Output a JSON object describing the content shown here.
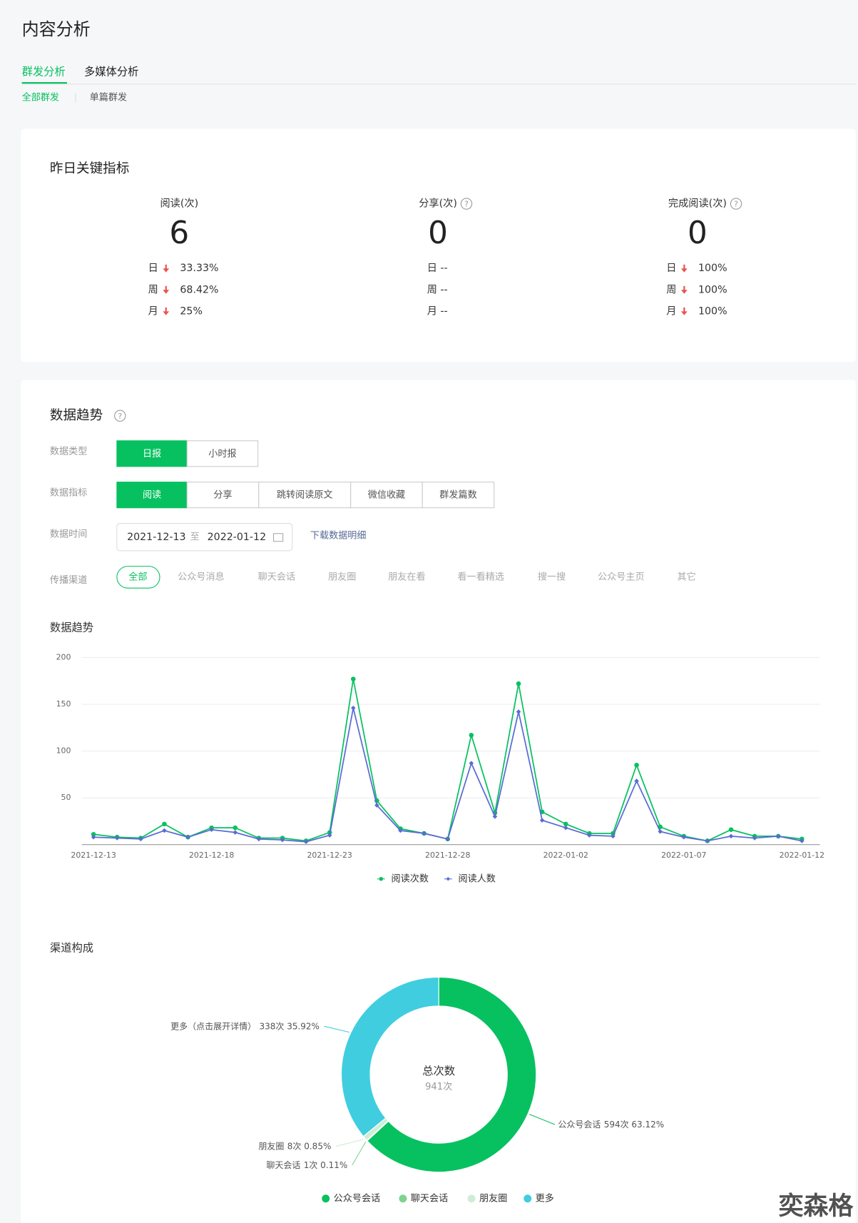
{
  "header": {
    "title": "内容分析"
  },
  "tabs": [
    "群发分析",
    "多媒体分析"
  ],
  "subtabs": [
    "全部群发",
    "单篇群发"
  ],
  "key_metrics": {
    "title": "昨日关键指标",
    "items": [
      {
        "label": "阅读(次)",
        "value": 6,
        "rows": [
          {
            "period": "日",
            "change": "33.33%",
            "trend": "down"
          },
          {
            "period": "周",
            "change": "68.42%",
            "trend": "down"
          },
          {
            "period": "月",
            "change": "25%",
            "trend": "down"
          }
        ]
      },
      {
        "label": "分享(次)",
        "value": 0,
        "help": true,
        "rows": [
          {
            "period": "日",
            "change": "--"
          },
          {
            "period": "周",
            "change": "--"
          },
          {
            "period": "月",
            "change": "--"
          }
        ]
      },
      {
        "label": "完成阅读(次)",
        "value": 0,
        "help": true,
        "rows": [
          {
            "period": "日",
            "change": "100%",
            "trend": "down"
          },
          {
            "period": "周",
            "change": "100%",
            "trend": "down"
          },
          {
            "period": "月",
            "change": "100%",
            "trend": "down"
          }
        ]
      }
    ]
  },
  "trend": {
    "title": "数据趋势",
    "filters": [
      {
        "label": "数据类型",
        "options": [
          "日报",
          "小时报"
        ]
      },
      {
        "label": "数据指标",
        "options": [
          "阅读",
          "分享",
          "跳转阅读原文",
          "微信收藏",
          "群发篇数"
        ]
      }
    ],
    "time": {
      "label": "数据时间",
      "start": "2021-12-13",
      "separator": "至",
      "end": "2022-01-12",
      "download": "下载数据明细"
    },
    "channels": {
      "label": "传播渠道",
      "options": [
        "全部",
        "公众号消息",
        "聊天会话",
        "朋友圈",
        "朋友在看",
        "看一看精选",
        "搜一搜",
        "公众号主页",
        "其它"
      ]
    }
  },
  "chart_data": [
    {
      "type": "line",
      "title": "数据趋势",
      "categories": [
        "2021-12-13",
        null,
        null,
        null,
        null,
        "2021-12-18",
        null,
        null,
        null,
        null,
        "2021-12-23",
        null,
        null,
        null,
        null,
        "2021-12-28",
        null,
        null,
        null,
        null,
        "2022-01-02",
        null,
        null,
        null,
        null,
        "2022-01-07",
        null,
        null,
        null,
        null,
        "2022-01-12"
      ],
      "series": [
        {
          "name": "阅读次数",
          "color": "#07c160",
          "values": [
            11,
            8,
            7,
            22,
            8,
            18,
            18,
            7,
            7,
            4,
            13,
            177,
            47,
            17,
            12,
            6,
            117,
            34,
            172,
            35,
            22,
            12,
            12,
            85,
            19,
            9,
            4,
            16,
            9,
            9,
            6
          ]
        },
        {
          "name": "阅读人数",
          "color": "#5b6bd5",
          "values": [
            8,
            7,
            6,
            15,
            8,
            16,
            13,
            6,
            5,
            3,
            10,
            146,
            42,
            15,
            12,
            6,
            87,
            30,
            142,
            26,
            18,
            10,
            9,
            68,
            14,
            8,
            4,
            9,
            7,
            9,
            4
          ]
        }
      ],
      "ylim": [
        0,
        200
      ],
      "yticks": [
        50,
        100,
        150,
        200
      ],
      "grid": true
    },
    {
      "type": "pie",
      "title": "渠道构成",
      "donut": true,
      "center_title": "总次数",
      "center_value": "941次",
      "categories": [
        "公众号会话",
        "聊天会话",
        "朋友圈",
        "更多"
      ],
      "label_names": [
        "公众号会话",
        "聊天会话",
        "朋友圈",
        "更多（点击展开详情）"
      ],
      "values": [
        594,
        1,
        8,
        338
      ],
      "value_labels": [
        "594次 63.12%",
        "1次 0.11%",
        "8次 0.85%",
        "338次 35.92%"
      ],
      "colors": [
        "#07c160",
        "#7dd38f",
        "#cdeed5",
        "#40cde0"
      ]
    }
  ],
  "watermark": "奕森格"
}
